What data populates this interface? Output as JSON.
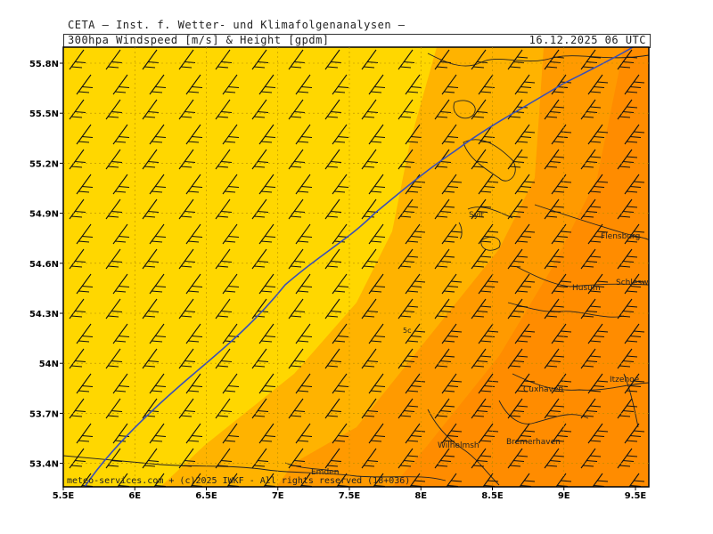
{
  "header": {
    "title": "CETA — Inst. f. Wetter- und Klimafolgenanalysen —",
    "subtitle": "300hpa Windspeed [m/s] & Height [gpdm]",
    "datetime": "16.12.2025 06 UTC"
  },
  "axes": {
    "x_ticks": [
      "5.5E",
      "6E",
      "6.5E",
      "7E",
      "7.5E",
      "8E",
      "8.5E",
      "9E",
      "9.5E"
    ],
    "y_ticks": [
      "55.8N",
      "55.5N",
      "55.2N",
      "54.9N",
      "54.6N",
      "54.3N",
      "54N",
      "53.7N",
      "53.4N"
    ]
  },
  "colors": {
    "zone_light": "#ffd700",
    "zone_mid": "#ffb300",
    "zone_orange": "#ff9a00",
    "zone_dark": "#ff8c00",
    "contour_line": "#3a4fb8"
  },
  "contour_label": "5c",
  "cities": [
    {
      "name": "Flensburg"
    },
    {
      "name": "Schleswig"
    },
    {
      "name": "Husum"
    },
    {
      "name": "Sylt"
    },
    {
      "name": "Cuxhaven"
    },
    {
      "name": "Itzehoe"
    },
    {
      "name": "Wilhelmsh"
    },
    {
      "name": "Bremerhaven"
    },
    {
      "name": "Emden"
    }
  ],
  "footer": {
    "copyright": "meteo-services.com + (c)2025 IWKF - All rights reserved (18+036)"
  }
}
